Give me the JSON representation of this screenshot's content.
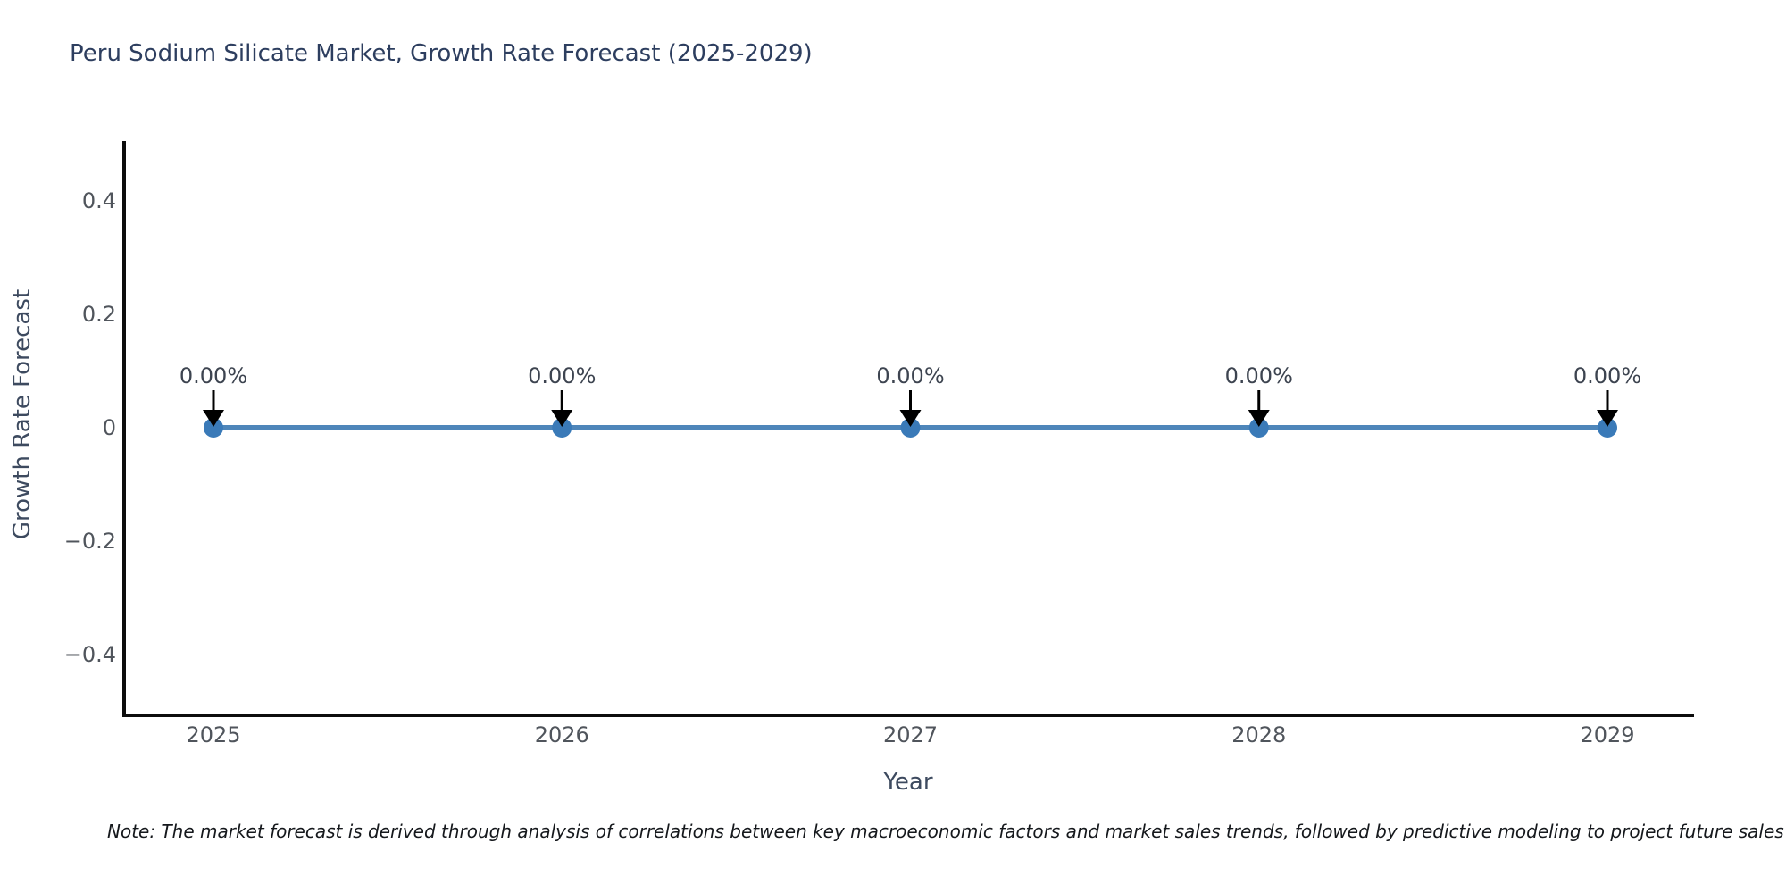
{
  "note": {
    "text": "Note: The market forecast is derived through analysis of correlations between key macroeconomic factors and market sales trends, followed by predictive modeling to project future sales"
  },
  "chart_data": {
    "type": "line",
    "title": "Peru Sodium Silicate Market, Growth Rate Forecast (2025-2029)",
    "xlabel": "Year",
    "ylabel": "Growth Rate Forecast",
    "categories": [
      "2025",
      "2026",
      "2027",
      "2028",
      "2029"
    ],
    "series": [
      {
        "name": "Growth Rate Forecast",
        "values": [
          0,
          0,
          0,
          0,
          0
        ],
        "point_labels": [
          "0.00%",
          "0.00%",
          "0.00%",
          "0.00%",
          "0.00%"
        ]
      }
    ],
    "ytick_values": [
      0.4,
      0.2,
      0,
      -0.2,
      -0.4
    ],
    "ytick_labels": [
      "0.4",
      "0.2",
      "0",
      "−0.2",
      "−0.4"
    ],
    "ylim": [
      -0.51,
      0.51
    ],
    "grid": false,
    "legend": "none",
    "annotations": "arrow pointing down to each data point",
    "colors": {
      "line": "#4e86ba",
      "marker": "#3a7ab8",
      "arrow": "#000000",
      "tick_text": "#50555c",
      "axis_title_text": "#3d4a5f",
      "annotation_text": "#3d4450",
      "title_text": "#2d3e5f",
      "spine": "#0d0d0d",
      "background": "#ffffff"
    }
  }
}
